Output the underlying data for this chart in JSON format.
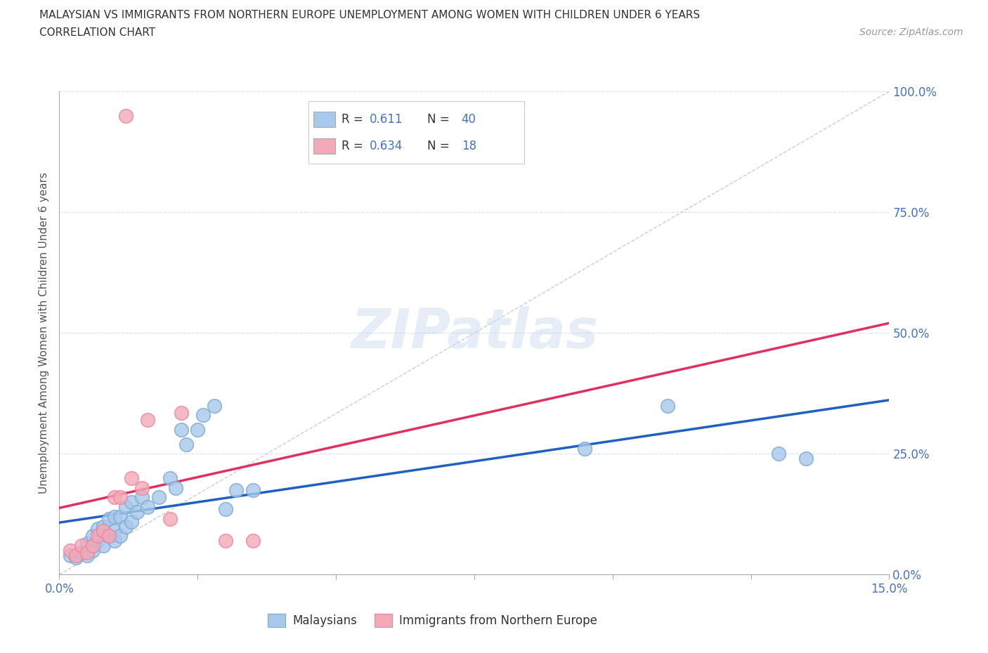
{
  "title_line1": "MALAYSIAN VS IMMIGRANTS FROM NORTHERN EUROPE UNEMPLOYMENT AMONG WOMEN WITH CHILDREN UNDER 6 YEARS",
  "title_line2": "CORRELATION CHART",
  "source": "Source: ZipAtlas.com",
  "ylabel": "Unemployment Among Women with Children Under 6 years",
  "xlim": [
    0.0,
    0.15
  ],
  "ylim": [
    0.0,
    1.0
  ],
  "xtick_edge_labels": [
    "0.0%",
    "15.0%"
  ],
  "xtick_edge_vals": [
    0.0,
    0.15
  ],
  "xtick_minor_vals": [
    0.025,
    0.05,
    0.075,
    0.1,
    0.125
  ],
  "ytick_labels": [
    "0.0%",
    "25.0%",
    "50.0%",
    "75.0%",
    "100.0%"
  ],
  "ytick_vals": [
    0.0,
    0.25,
    0.5,
    0.75,
    1.0
  ],
  "blue_color": "#A8C8EC",
  "pink_color": "#F4A8B8",
  "blue_edge_color": "#7AAAD0",
  "pink_edge_color": "#E888A0",
  "blue_line_color": "#2060C0",
  "pink_line_color": "#E03060",
  "diag_line_color": "#C4C4CC",
  "grid_color": "#D8E0EE",
  "label_color": "#4472C4",
  "R_blue": 0.611,
  "N_blue": 40,
  "R_pink": 0.634,
  "N_pink": 18,
  "legend_label_blue": "Malaysians",
  "legend_label_pink": "Immigrants from Northern Europe",
  "watermark": "ZIPatlas",
  "blue_x": [
    0.002,
    0.003,
    0.004,
    0.005,
    0.005,
    0.006,
    0.006,
    0.007,
    0.007,
    0.008,
    0.008,
    0.009,
    0.009,
    0.01,
    0.01,
    0.01,
    0.011,
    0.011,
    0.012,
    0.012,
    0.013,
    0.013,
    0.014,
    0.015,
    0.016,
    0.018,
    0.02,
    0.021,
    0.022,
    0.023,
    0.025,
    0.026,
    0.028,
    0.03,
    0.032,
    0.035,
    0.095,
    0.11,
    0.13,
    0.135
  ],
  "blue_y": [
    0.04,
    0.035,
    0.045,
    0.04,
    0.065,
    0.05,
    0.08,
    0.07,
    0.095,
    0.06,
    0.1,
    0.08,
    0.115,
    0.07,
    0.09,
    0.12,
    0.08,
    0.12,
    0.1,
    0.14,
    0.11,
    0.15,
    0.13,
    0.16,
    0.14,
    0.16,
    0.2,
    0.18,
    0.3,
    0.27,
    0.3,
    0.33,
    0.35,
    0.135,
    0.175,
    0.175,
    0.26,
    0.35,
    0.25,
    0.24
  ],
  "pink_x": [
    0.002,
    0.003,
    0.004,
    0.005,
    0.006,
    0.007,
    0.008,
    0.009,
    0.01,
    0.011,
    0.012,
    0.013,
    0.015,
    0.016,
    0.02,
    0.022,
    0.03,
    0.035
  ],
  "pink_y": [
    0.05,
    0.04,
    0.06,
    0.045,
    0.06,
    0.08,
    0.09,
    0.08,
    0.16,
    0.16,
    0.95,
    0.2,
    0.18,
    0.32,
    0.115,
    0.335,
    0.07,
    0.07
  ]
}
